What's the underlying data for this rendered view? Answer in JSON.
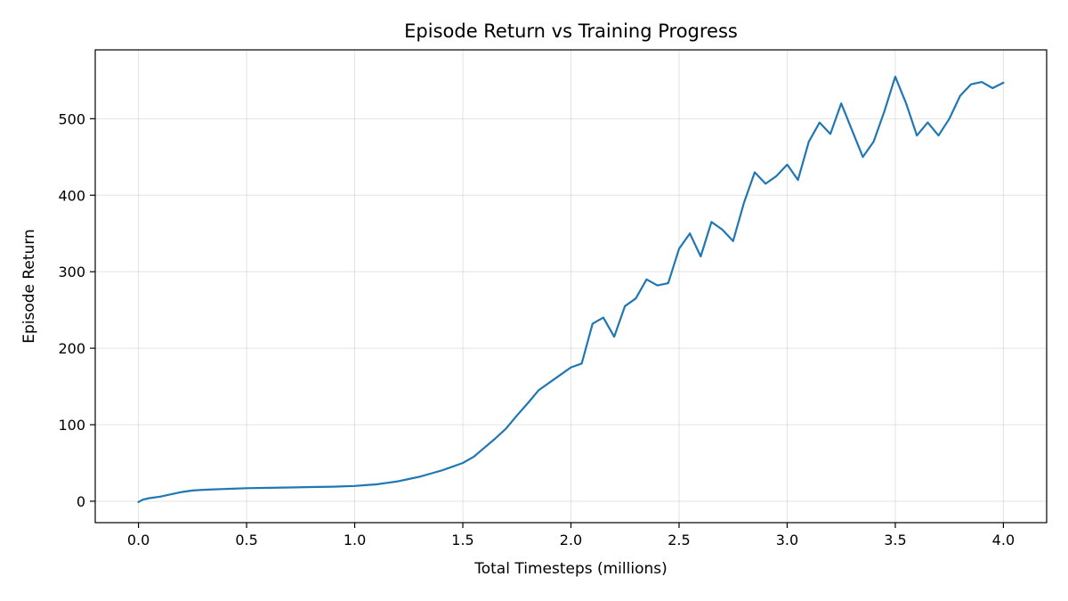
{
  "chart_data": {
    "type": "line",
    "title": "Episode Return vs Training Progress",
    "xlabel": "Total Timesteps (millions)",
    "ylabel": "Episode Return",
    "xlim": [
      -0.2,
      4.2
    ],
    "ylim": [
      -28,
      590
    ],
    "xticks": [
      0.0,
      0.5,
      1.0,
      1.5,
      2.0,
      2.5,
      3.0,
      3.5,
      4.0
    ],
    "xtick_labels": [
      "0.0",
      "0.5",
      "1.0",
      "1.5",
      "2.0",
      "2.5",
      "3.0",
      "3.5",
      "4.0"
    ],
    "yticks": [
      0,
      100,
      200,
      300,
      400,
      500
    ],
    "ytick_labels": [
      "0",
      "100",
      "200",
      "300",
      "400",
      "500"
    ],
    "grid": true,
    "series": [
      {
        "color": "#1f77b4",
        "x": [
          0.0,
          0.02,
          0.05,
          0.1,
          0.15,
          0.2,
          0.25,
          0.3,
          0.35,
          0.4,
          0.5,
          0.6,
          0.7,
          0.8,
          0.9,
          1.0,
          1.05,
          1.1,
          1.15,
          1.2,
          1.25,
          1.3,
          1.35,
          1.4,
          1.45,
          1.5,
          1.55,
          1.6,
          1.65,
          1.7,
          1.75,
          1.8,
          1.85,
          1.9,
          1.95,
          2.0,
          2.05,
          2.1,
          2.15,
          2.2,
          2.25,
          2.3,
          2.35,
          2.4,
          2.45,
          2.5,
          2.55,
          2.6,
          2.65,
          2.7,
          2.75,
          2.8,
          2.85,
          2.9,
          2.95,
          3.0,
          3.05,
          3.1,
          3.15,
          3.2,
          3.25,
          3.3,
          3.35,
          3.4,
          3.45,
          3.5,
          3.55,
          3.6,
          3.65,
          3.7,
          3.75,
          3.8,
          3.85,
          3.9,
          3.95,
          4.0
        ],
        "y": [
          -1,
          2,
          4,
          6,
          9,
          12,
          14,
          15,
          15.5,
          16,
          17,
          17.5,
          18,
          18.5,
          19,
          20,
          21,
          22,
          24,
          26,
          29,
          32,
          36,
          40,
          45,
          50,
          58,
          70,
          82,
          95,
          112,
          128,
          145,
          155,
          165,
          175,
          180,
          232,
          240,
          215,
          255,
          265,
          290,
          282,
          285,
          330,
          350,
          320,
          365,
          355,
          340,
          390,
          430,
          415,
          425,
          440,
          420,
          470,
          495,
          480,
          520,
          485,
          450,
          470,
          510,
          555,
          520,
          478,
          495,
          478,
          500,
          530,
          545,
          548,
          540,
          547
        ]
      }
    ]
  }
}
